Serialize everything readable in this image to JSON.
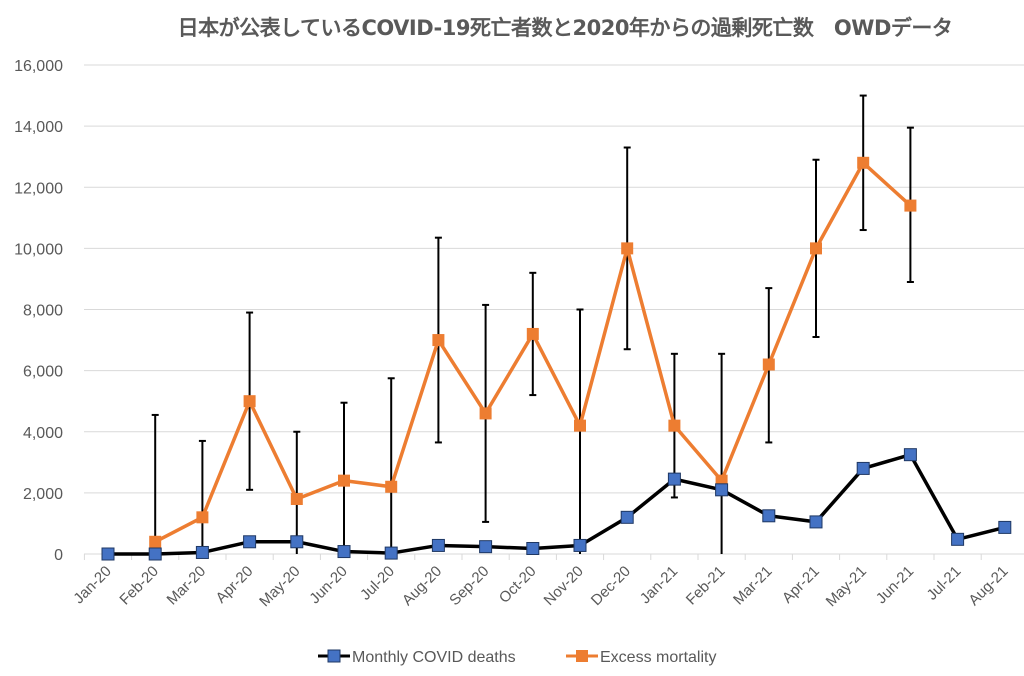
{
  "chart_data": {
    "type": "line",
    "title": "日本が公表しているCOVID-19死亡者数と2020年からの過剰死亡数　OWDデータ",
    "xlabel": "",
    "ylabel": "",
    "ylim": [
      0,
      16000
    ],
    "yticks": [
      0,
      2000,
      4000,
      6000,
      8000,
      10000,
      12000,
      14000,
      16000
    ],
    "ytick_labels": [
      "0",
      "2,000",
      "4,000",
      "6,000",
      "8,000",
      "10,000",
      "12,000",
      "14,000",
      "16,000"
    ],
    "grid": true,
    "legend_position": "bottom",
    "categories": [
      "Jan-20",
      "Feb-20",
      "Mar-20",
      "Apr-20",
      "May-20",
      "Jun-20",
      "Jul-20",
      "Aug-20",
      "Sep-20",
      "Oct-20",
      "Nov-20",
      "Dec-20",
      "Jan-21",
      "Feb-21",
      "Mar-21",
      "Apr-21",
      "May-21",
      "Jun-21",
      "Jul-21",
      "Aug-21"
    ],
    "series": [
      {
        "name": "Monthly COVID deaths",
        "line_color": "#000000",
        "marker_color": "#4472C4",
        "values": [
          0,
          0,
          50,
          400,
          400,
          80,
          30,
          280,
          240,
          180,
          280,
          1200,
          2450,
          2100,
          1250,
          1050,
          2800,
          3250,
          480,
          870
        ]
      },
      {
        "name": "Excess mortality",
        "line_color": "#ED7D31",
        "marker_color": "#ED7D31",
        "values": [
          null,
          400,
          1200,
          5000,
          1800,
          2400,
          2200,
          7000,
          4600,
          7200,
          4200,
          10000,
          4200,
          2400,
          6200,
          10000,
          12800,
          11400,
          null,
          null
        ],
        "error_upper": [
          null,
          4550,
          3700,
          7900,
          4000,
          4950,
          5750,
          10350,
          8150,
          9200,
          8000,
          13300,
          6550,
          6550,
          8700,
          12900,
          15000,
          13950,
          null,
          null
        ],
        "error_lower": [
          null,
          0,
          0,
          2100,
          0,
          0,
          0,
          3650,
          1050,
          5200,
          0,
          6700,
          1850,
          0,
          3650,
          7100,
          10600,
          8900,
          null,
          null
        ]
      }
    ]
  }
}
